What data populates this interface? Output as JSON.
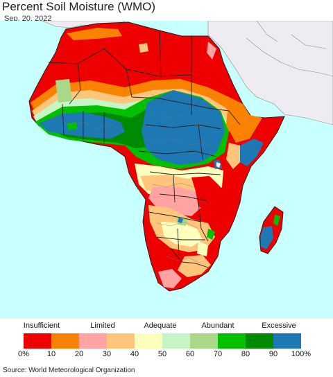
{
  "title": "Percent Soil Moisture (WMO)",
  "date": "Sep. 20, 2022",
  "legend": {
    "categories": [
      "Insufficient",
      "Limited",
      "Adequate",
      "Abundant",
      "Excessive"
    ],
    "ticks": [
      "0%",
      "10",
      "20",
      "30",
      "40",
      "50",
      "60",
      "70",
      "80",
      "90",
      "100%"
    ],
    "colors": [
      "#ee0000",
      "#f98200",
      "#ffa3a3",
      "#ffc57a",
      "#ffffbd",
      "#c6f6c6",
      "#a8d888",
      "#00c000",
      "#008a00",
      "#1e78b4"
    ]
  },
  "source": "Source: World Meteorological Organization",
  "map_colors": {
    "ocean": "#c8ffff",
    "neighbor_land": "#eeecf1",
    "border": "#333333"
  }
}
